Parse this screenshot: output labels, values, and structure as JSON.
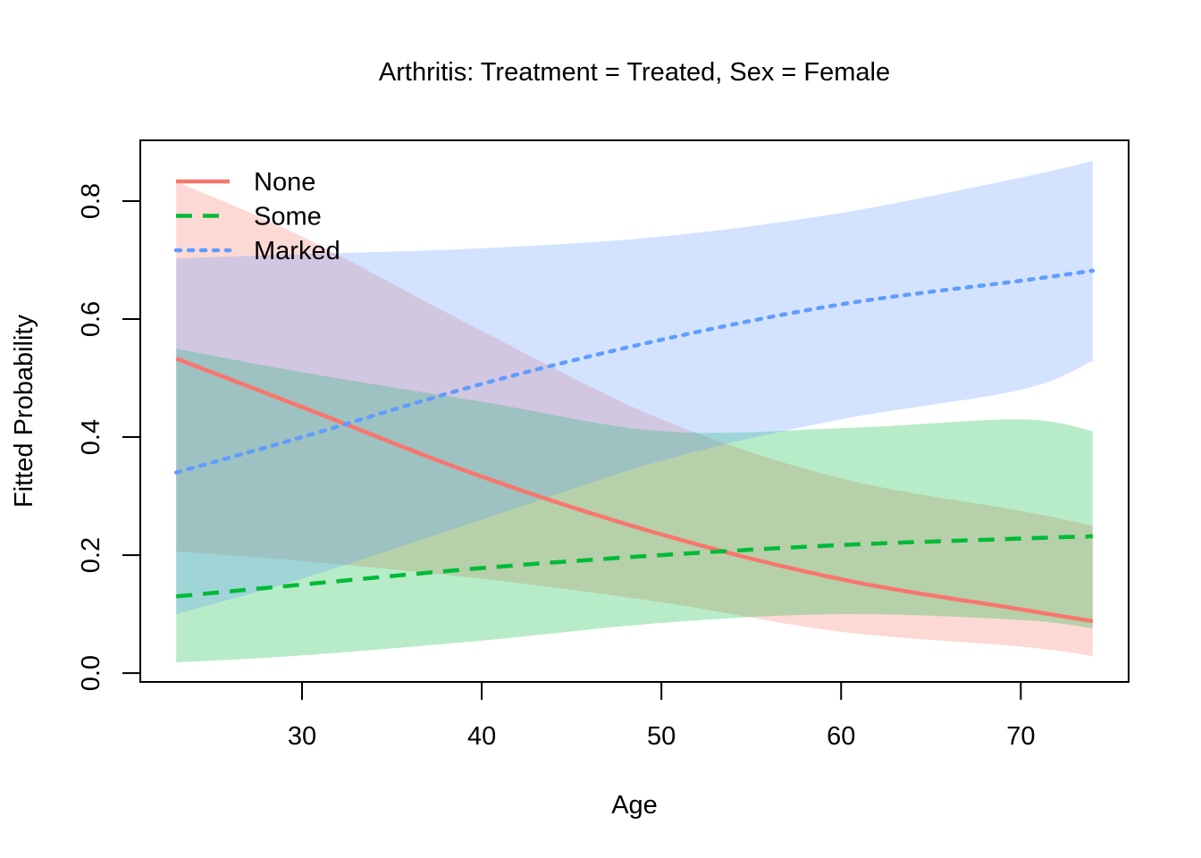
{
  "chart_data": {
    "type": "line",
    "title": "Arthritis: Treatment = Treated, Sex = Female",
    "xlabel": "Age",
    "ylabel": "Fitted Probability",
    "xlim": [
      21,
      76
    ],
    "ylim": [
      -0.015,
      0.903
    ],
    "xticks": [
      30,
      40,
      50,
      60,
      70
    ],
    "xtick_labels": [
      "30",
      "40",
      "50",
      "60",
      "70"
    ],
    "yticks": [
      0.0,
      0.2,
      0.4,
      0.6,
      0.8
    ],
    "ytick_labels": [
      "0.0",
      "0.2",
      "0.4",
      "0.6",
      "0.8"
    ],
    "grid": false,
    "legend_position": "top-left",
    "x": [
      23,
      30,
      40,
      50,
      60,
      70,
      74
    ],
    "series": [
      {
        "name": "None",
        "color": "#F8766D",
        "linestyle": "solid",
        "values": [
          0.533,
          0.451,
          0.333,
          0.235,
          0.159,
          0.108,
          0.088
        ],
        "lower": [
          0.206,
          0.19,
          0.16,
          0.12,
          0.07,
          0.045,
          0.029
        ],
        "upper": [
          0.833,
          0.74,
          0.58,
          0.43,
          0.33,
          0.275,
          0.25
        ]
      },
      {
        "name": "Some",
        "color": "#00BA38",
        "linestyle": "dashed",
        "values": [
          0.13,
          0.15,
          0.178,
          0.2,
          0.217,
          0.228,
          0.232
        ],
        "lower": [
          0.018,
          0.03,
          0.055,
          0.085,
          0.1,
          0.09,
          0.076
        ],
        "upper": [
          0.55,
          0.51,
          0.46,
          0.41,
          0.415,
          0.43,
          0.41
        ]
      },
      {
        "name": "Marked",
        "color": "#619CFF",
        "linestyle": "dotted",
        "values": [
          0.34,
          0.4,
          0.49,
          0.565,
          0.625,
          0.665,
          0.682
        ],
        "lower": [
          0.1,
          0.16,
          0.26,
          0.36,
          0.43,
          0.48,
          0.529
        ],
        "upper": [
          0.703,
          0.71,
          0.72,
          0.74,
          0.78,
          0.84,
          0.868
        ]
      }
    ]
  }
}
